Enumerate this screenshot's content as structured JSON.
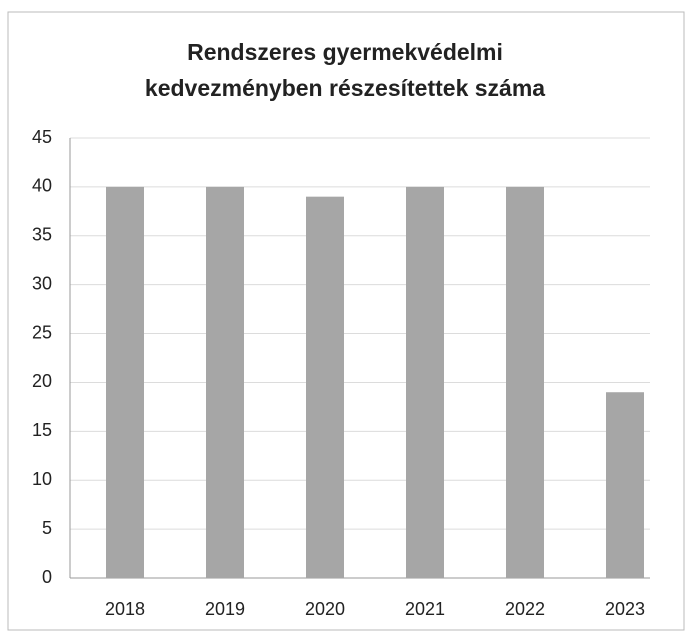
{
  "chart_data": {
    "type": "bar",
    "title": "Rendszeres gyermekvédelmi kedvezményben részesítettek száma",
    "categories": [
      "2018",
      "2019",
      "2020",
      "2021",
      "2022",
      "2023"
    ],
    "values": [
      40,
      40,
      39,
      40,
      40,
      19
    ],
    "color": "#a6a6a6",
    "ylim": [
      0,
      45
    ],
    "yticks": [
      0,
      5,
      10,
      15,
      20,
      25,
      30,
      35,
      40,
      45
    ],
    "grid": true
  }
}
